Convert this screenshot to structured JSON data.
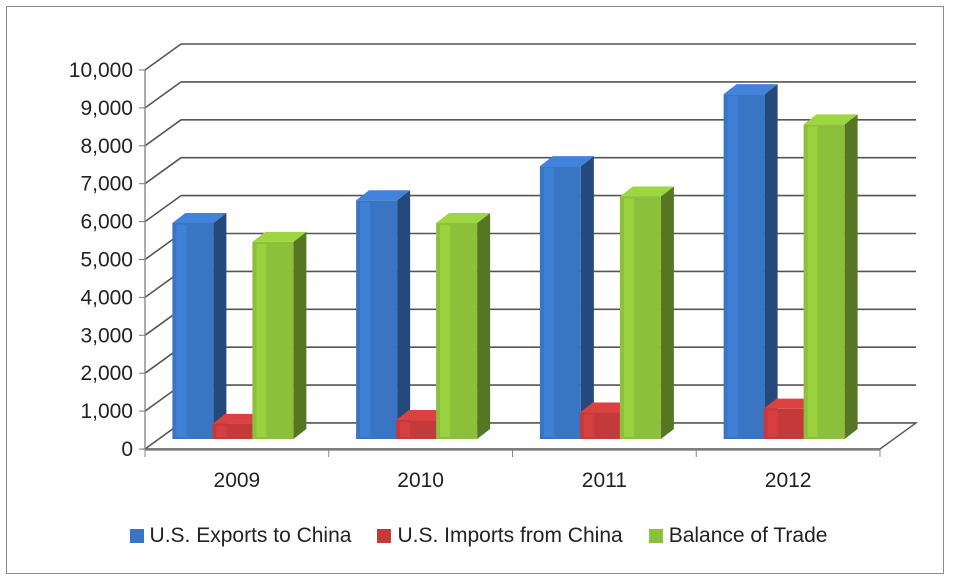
{
  "chart_data": {
    "type": "bar",
    "categories": [
      "2009",
      "2010",
      "2011",
      "2012"
    ],
    "series": [
      {
        "name": "U.S. Exports to China",
        "values": [
          5700,
          6300,
          7200,
          9100
        ],
        "color": "#3a75c4"
      },
      {
        "name": "U.S. Imports from China",
        "values": [
          400,
          500,
          700,
          800
        ],
        "color": "#c43a3a"
      },
      {
        "name": "Balance of Trade",
        "values": [
          5200,
          5700,
          6400,
          8300
        ],
        "color": "#8cbf3a"
      }
    ],
    "ylim": [
      0,
      10000
    ],
    "yticks": [
      "0",
      "1,000",
      "2,000",
      "3,000",
      "4,000",
      "5,000",
      "6,000",
      "7,000",
      "8,000",
      "9,000",
      "10,000"
    ],
    "grid": true,
    "legend": "bottom",
    "style": "3d-clustered-column"
  }
}
